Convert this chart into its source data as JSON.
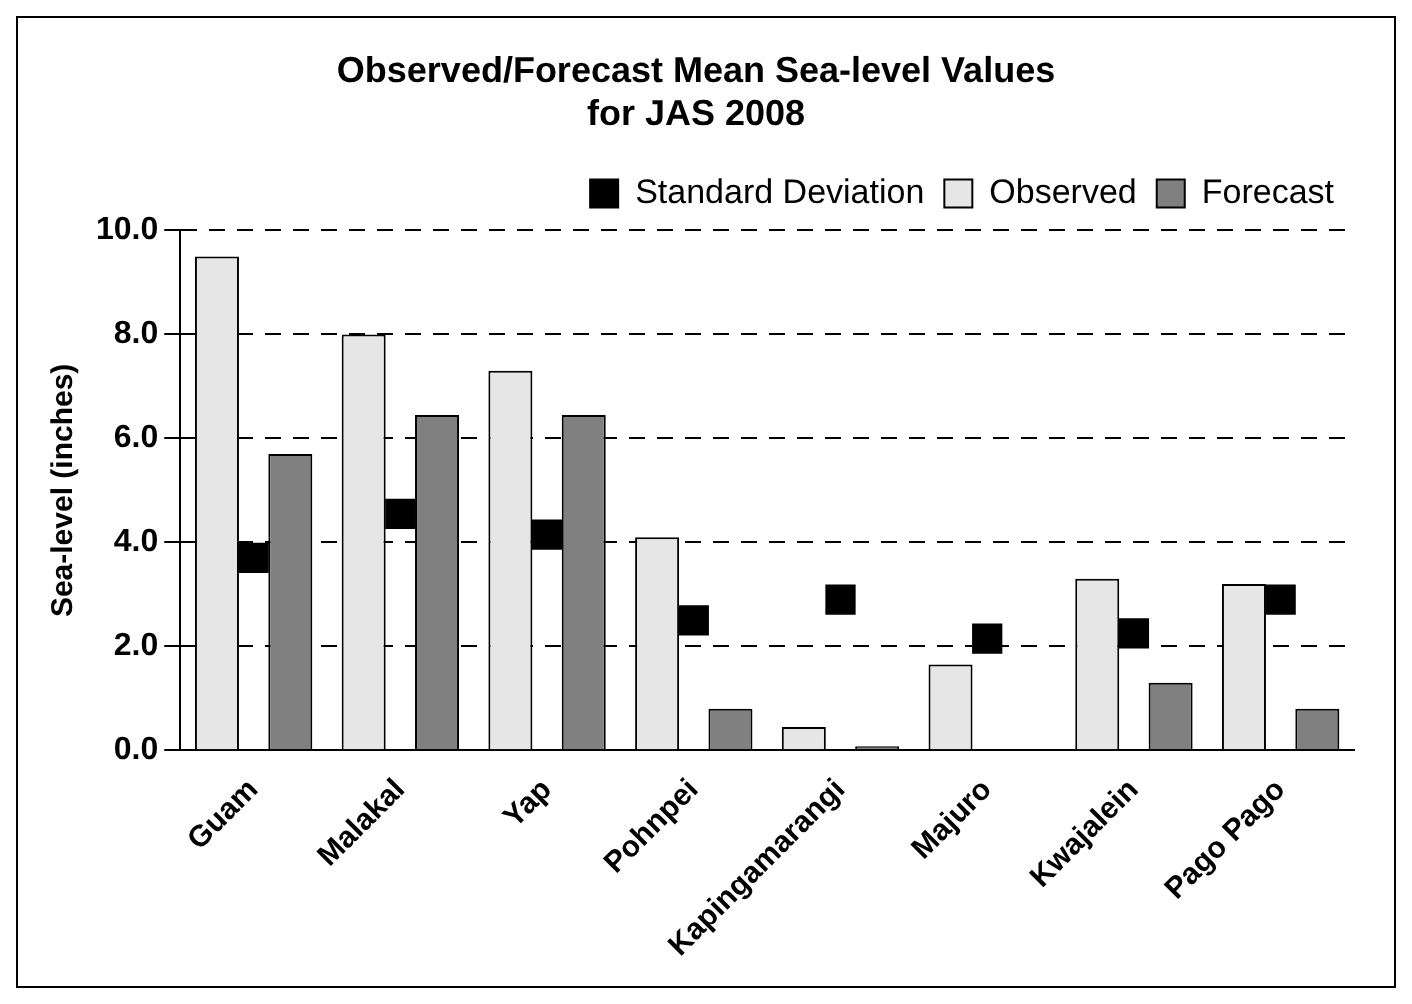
{
  "chart_data": {
    "type": "bar",
    "title": "Observed/Forecast Mean Sea-level Values\nfor JAS 2008",
    "ylabel": "Sea-level (inches)",
    "categories": [
      "Guam",
      "Malakal",
      "Yap",
      "Pohnpei",
      "Kapingamarangi",
      "Majuro",
      "Kwajalein",
      "Pago Pago"
    ],
    "series": [
      {
        "name": "Observed",
        "color": "#e6e6e6",
        "values": [
          9.5,
          8.0,
          7.3,
          4.1,
          0.45,
          1.65,
          3.3,
          3.2
        ]
      },
      {
        "name": "Forecast",
        "color": "#808080",
        "values": [
          5.7,
          6.45,
          6.45,
          0.8,
          0.08,
          0,
          1.3,
          0.8
        ]
      },
      {
        "name": "Standard Deviation",
        "type": "scatter",
        "marker": "square",
        "color": "#000000",
        "values": [
          3.7,
          4.55,
          4.15,
          2.5,
          2.9,
          2.15,
          2.25,
          2.9
        ]
      }
    ],
    "ylim": [
      0,
      10
    ],
    "yticks": [
      {
        "value": 0,
        "label": "0.0"
      },
      {
        "value": 2,
        "label": "2.0"
      },
      {
        "value": 4,
        "label": "4.0"
      },
      {
        "value": 6,
        "label": "6.0"
      },
      {
        "value": 8,
        "label": "8.0"
      },
      {
        "value": 10,
        "label": "10.0"
      }
    ],
    "grid": "y",
    "legend": "top right"
  }
}
